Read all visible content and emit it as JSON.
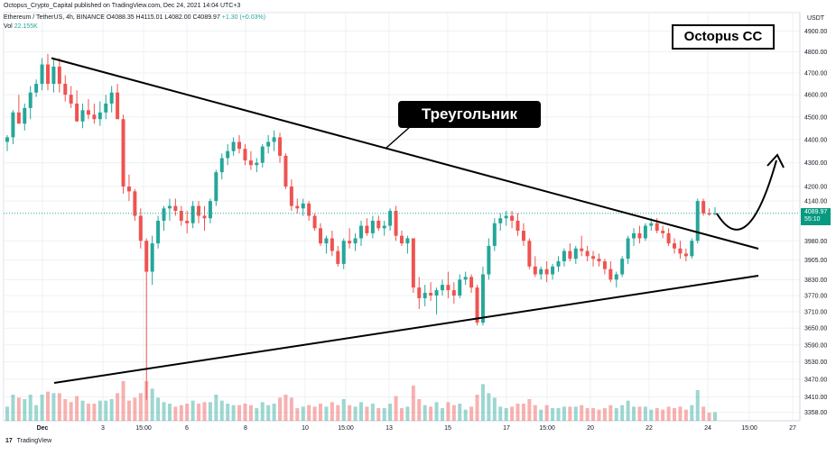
{
  "header": {
    "published": "Octopus_Crypto_Capital published on TradingView.com, Dec 24, 2021 14:04 UTC+3",
    "symbol_line_prefix": "Ethereum / TetherUS, 4h, BINANCE  O4088.35  H4115.01  L4082.00  C4089.97",
    "symbol_line_change": "+1.30 (+0.03%)",
    "volume_label": "Vol",
    "volume_value": "22.155K"
  },
  "overlays": {
    "brand_box": "Octopus CC",
    "triangle_label": "Треугольник"
  },
  "price_axis": {
    "currency": "USDT",
    "last_price": "4089.97",
    "countdown": "55:10"
  },
  "footer": {
    "logo_mark": "17",
    "logo_text": "TradingView"
  },
  "colors": {
    "up": "#26a69a",
    "down": "#ef5350",
    "line": "#000000",
    "grid": "#eef0f3",
    "price_line": "#26a69a"
  },
  "chart_data": {
    "type": "candlestick",
    "yaxis": {
      "scale": "log",
      "ylim": [
        3330,
        4990
      ],
      "ticks": [
        4900,
        4800,
        4700,
        4600,
        4500,
        4400,
        4300,
        4200,
        4140,
        3980,
        3905,
        3830,
        3770,
        3710,
        3650,
        3590,
        3530,
        3470,
        3410,
        3358
      ]
    },
    "xaxis": {
      "tick_labels": [
        "Dec",
        "3",
        "15:00",
        "6",
        "8",
        "10",
        "15:00",
        "13",
        "15",
        "17",
        "15:00",
        "20",
        "22",
        "24",
        "15:00",
        "27"
      ]
    },
    "candles": [
      [
        4390,
        4420,
        4350,
        4410
      ],
      [
        4410,
        4530,
        4380,
        4520
      ],
      [
        4520,
        4600,
        4470,
        4470
      ],
      [
        4470,
        4560,
        4440,
        4540
      ],
      [
        4540,
        4640,
        4490,
        4610
      ],
      [
        4610,
        4670,
        4590,
        4650
      ],
      [
        4650,
        4770,
        4620,
        4740
      ],
      [
        4740,
        4790,
        4620,
        4650
      ],
      [
        4650,
        4770,
        4610,
        4730
      ],
      [
        4730,
        4770,
        4610,
        4650
      ],
      [
        4650,
        4690,
        4570,
        4600
      ],
      [
        4600,
        4640,
        4540,
        4560
      ],
      [
        4560,
        4620,
        4480,
        4480
      ],
      [
        4480,
        4560,
        4450,
        4530
      ],
      [
        4530,
        4580,
        4490,
        4510
      ],
      [
        4510,
        4560,
        4470,
        4490
      ],
      [
        4490,
        4570,
        4460,
        4520
      ],
      [
        4520,
        4600,
        4490,
        4560
      ],
      [
        4560,
        4640,
        4520,
        4610
      ],
      [
        4610,
        4650,
        4490,
        4490
      ],
      [
        4490,
        4510,
        4170,
        4200
      ],
      [
        4200,
        4250,
        4140,
        4180
      ],
      [
        4180,
        4190,
        4060,
        4080
      ],
      [
        4080,
        4110,
        3950,
        3980
      ],
      [
        3980,
        3990,
        3400,
        3860
      ],
      [
        3860,
        4000,
        3810,
        3970
      ],
      [
        3970,
        4080,
        3950,
        4060
      ],
      [
        4060,
        4120,
        4020,
        4110
      ],
      [
        4110,
        4150,
        4060,
        4120
      ],
      [
        4120,
        4150,
        4080,
        4100
      ],
      [
        4100,
        4120,
        4040,
        4060
      ],
      [
        4060,
        4100,
        4010,
        4050
      ],
      [
        4050,
        4140,
        4030,
        4120
      ],
      [
        4120,
        4140,
        4050,
        4080
      ],
      [
        4080,
        4120,
        4020,
        4070
      ],
      [
        4070,
        4150,
        4050,
        4140
      ],
      [
        4140,
        4270,
        4120,
        4260
      ],
      [
        4260,
        4340,
        4230,
        4320
      ],
      [
        4320,
        4380,
        4290,
        4350
      ],
      [
        4350,
        4410,
        4330,
        4390
      ],
      [
        4390,
        4420,
        4340,
        4360
      ],
      [
        4360,
        4380,
        4290,
        4310
      ],
      [
        4310,
        4350,
        4270,
        4290
      ],
      [
        4290,
        4320,
        4260,
        4300
      ],
      [
        4300,
        4380,
        4280,
        4370
      ],
      [
        4370,
        4420,
        4340,
        4390
      ],
      [
        4390,
        4440,
        4350,
        4410
      ],
      [
        4410,
        4430,
        4300,
        4330
      ],
      [
        4330,
        4340,
        4190,
        4200
      ],
      [
        4200,
        4230,
        4100,
        4120
      ],
      [
        4120,
        4150,
        4090,
        4110
      ],
      [
        4110,
        4150,
        4080,
        4130
      ],
      [
        4130,
        4140,
        4060,
        4080
      ],
      [
        4080,
        4090,
        4020,
        4030
      ],
      [
        4030,
        4050,
        3960,
        3970
      ],
      [
        3970,
        4000,
        3930,
        3990
      ],
      [
        3990,
        4020,
        3920,
        3940
      ],
      [
        3940,
        3960,
        3880,
        3890
      ],
      [
        3890,
        3990,
        3870,
        3980
      ],
      [
        3980,
        4030,
        3950,
        3970
      ],
      [
        3970,
        4010,
        3940,
        3990
      ],
      [
        3990,
        4060,
        3960,
        4040
      ],
      [
        4040,
        4070,
        4000,
        4010
      ],
      [
        4010,
        4080,
        3990,
        4060
      ],
      [
        4060,
        4080,
        4020,
        4030
      ],
      [
        4030,
        4060,
        4000,
        4040
      ],
      [
        4040,
        4110,
        4020,
        4100
      ],
      [
        4100,
        4120,
        3980,
        4000
      ],
      [
        4000,
        4020,
        3960,
        3970
      ],
      [
        3970,
        4000,
        3930,
        3990
      ],
      [
        3990,
        3990,
        3780,
        3800
      ],
      [
        3800,
        3840,
        3720,
        3760
      ],
      [
        3760,
        3810,
        3730,
        3780
      ],
      [
        3780,
        3820,
        3750,
        3770
      ],
      [
        3770,
        3800,
        3700,
        3790
      ],
      [
        3790,
        3830,
        3770,
        3810
      ],
      [
        3810,
        3860,
        3760,
        3790
      ],
      [
        3790,
        3820,
        3740,
        3770
      ],
      [
        3770,
        3850,
        3760,
        3830
      ],
      [
        3830,
        3860,
        3810,
        3840
      ],
      [
        3840,
        3850,
        3780,
        3800
      ],
      [
        3800,
        3810,
        3660,
        3670
      ],
      [
        3670,
        3880,
        3660,
        3850
      ],
      [
        3850,
        3990,
        3830,
        3960
      ],
      [
        3960,
        4070,
        3940,
        4050
      ],
      [
        4050,
        4090,
        4020,
        4070
      ],
      [
        4070,
        4100,
        4040,
        4080
      ],
      [
        4080,
        4100,
        4030,
        4060
      ],
      [
        4060,
        4090,
        4000,
        4020
      ],
      [
        4020,
        4050,
        3960,
        3980
      ],
      [
        3980,
        3990,
        3870,
        3880
      ],
      [
        3880,
        3920,
        3840,
        3850
      ],
      [
        3850,
        3880,
        3830,
        3870
      ],
      [
        3870,
        3900,
        3820,
        3850
      ],
      [
        3850,
        3890,
        3830,
        3880
      ],
      [
        3880,
        3920,
        3860,
        3900
      ],
      [
        3900,
        3950,
        3880,
        3940
      ],
      [
        3940,
        3970,
        3900,
        3910
      ],
      [
        3910,
        3960,
        3890,
        3950
      ],
      [
        3950,
        4000,
        3920,
        3940
      ],
      [
        3940,
        3960,
        3900,
        3920
      ],
      [
        3920,
        3940,
        3880,
        3910
      ],
      [
        3910,
        3930,
        3880,
        3900
      ],
      [
        3900,
        3910,
        3850,
        3870
      ],
      [
        3870,
        3900,
        3820,
        3830
      ],
      [
        3830,
        3860,
        3800,
        3850
      ],
      [
        3850,
        3920,
        3840,
        3910
      ],
      [
        3910,
        4000,
        3890,
        3990
      ],
      [
        3990,
        4030,
        3960,
        4010
      ],
      [
        4010,
        4040,
        3970,
        3990
      ],
      [
        3990,
        4050,
        3980,
        4040
      ],
      [
        4040,
        4070,
        4020,
        4050
      ],
      [
        4050,
        4070,
        4010,
        4020
      ],
      [
        4020,
        4040,
        3990,
        4010
      ],
      [
        4010,
        4030,
        3960,
        3970
      ],
      [
        3970,
        3990,
        3930,
        3950
      ],
      [
        3950,
        3980,
        3910,
        3930
      ],
      [
        3930,
        3950,
        3900,
        3920
      ],
      [
        3920,
        3990,
        3910,
        3980
      ],
      [
        3980,
        4150,
        3970,
        4140
      ],
      [
        4140,
        4150,
        4080,
        4090
      ],
      [
        4090,
        4110,
        4080,
        4085
      ],
      [
        4088.35,
        4115.01,
        4082.0,
        4089.97
      ]
    ],
    "trendlines": [
      {
        "name": "upper",
        "from": [
          "Dec",
          4770
        ],
        "to": [
          "24",
          3960
        ]
      },
      {
        "name": "lower",
        "from": [
          "Dec",
          3480
        ],
        "to": [
          "24",
          3840
        ]
      }
    ]
  }
}
